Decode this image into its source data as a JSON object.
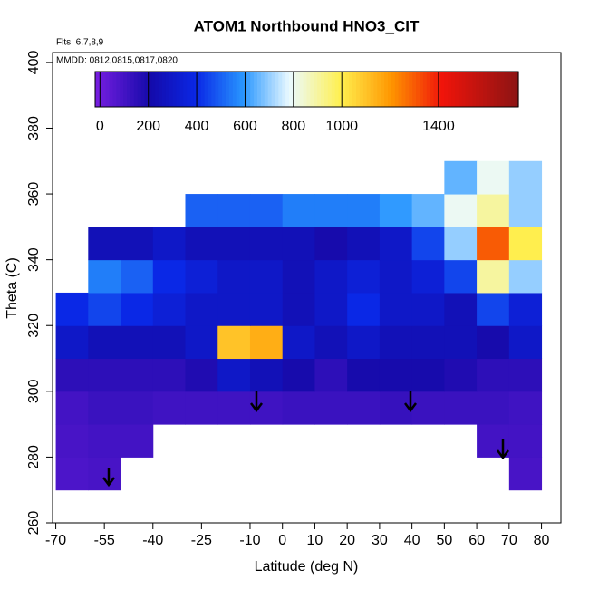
{
  "chart_data": {
    "type": "heatmap",
    "title": "ATOM1 Northbound HNO3_CIT",
    "subtitle": "Flts: 6,7,8,9",
    "annotation": "MMDD: 0812,0815,0817,0820",
    "x_label": "Latitude (deg N)",
    "y_label": "Theta (C)",
    "xlim": [
      -71,
      86
    ],
    "ylim": [
      260,
      403
    ],
    "xticks": [
      -70,
      -55,
      -40,
      -25,
      -10,
      0,
      10,
      20,
      30,
      40,
      50,
      60,
      70,
      80
    ],
    "yticks": [
      260,
      280,
      300,
      320,
      340,
      360,
      380,
      400
    ],
    "xbins": [
      -70,
      -60,
      -50,
      -40,
      -30,
      -20,
      -10,
      0,
      10,
      20,
      30,
      40,
      50,
      60,
      70,
      80
    ],
    "ybins": [
      270,
      280,
      290,
      300,
      310,
      320,
      330,
      340,
      350,
      360,
      370
    ],
    "z": [
      [
        80,
        90,
        null,
        null,
        null,
        null,
        null,
        null,
        null,
        null,
        null,
        null,
        null,
        null,
        90
      ],
      [
        90,
        100,
        100,
        null,
        null,
        null,
        null,
        null,
        null,
        null,
        null,
        null,
        null,
        100,
        100
      ],
      [
        100,
        120,
        120,
        110,
        110,
        110,
        110,
        120,
        120,
        120,
        130,
        120,
        120,
        120,
        110
      ],
      [
        150,
        150,
        150,
        150,
        180,
        300,
        250,
        200,
        150,
        200,
        200,
        200,
        180,
        150,
        150
      ],
      [
        300,
        250,
        250,
        250,
        300,
        1100,
        1150,
        300,
        250,
        300,
        250,
        250,
        250,
        200,
        300
      ],
      [
        400,
        450,
        400,
        350,
        300,
        300,
        300,
        250,
        300,
        400,
        300,
        300,
        250,
        450,
        350
      ],
      [
        null,
        550,
        500,
        400,
        350,
        300,
        300,
        250,
        300,
        350,
        300,
        350,
        450,
        900,
        700
      ],
      [
        null,
        250,
        250,
        300,
        250,
        250,
        250,
        250,
        200,
        250,
        300,
        450,
        700,
        1300,
        1000
      ],
      [
        null,
        null,
        null,
        null,
        500,
        500,
        500,
        550,
        550,
        550,
        600,
        650,
        800,
        900,
        700
      ],
      [
        null,
        null,
        null,
        null,
        null,
        null,
        null,
        null,
        null,
        null,
        null,
        null,
        650,
        800,
        700
      ]
    ],
    "colorbar_lim": [
      -20,
      1730
    ],
    "colorbar_ticks": [
      0,
      200,
      400,
      600,
      800,
      1000,
      1400
    ]
  }
}
